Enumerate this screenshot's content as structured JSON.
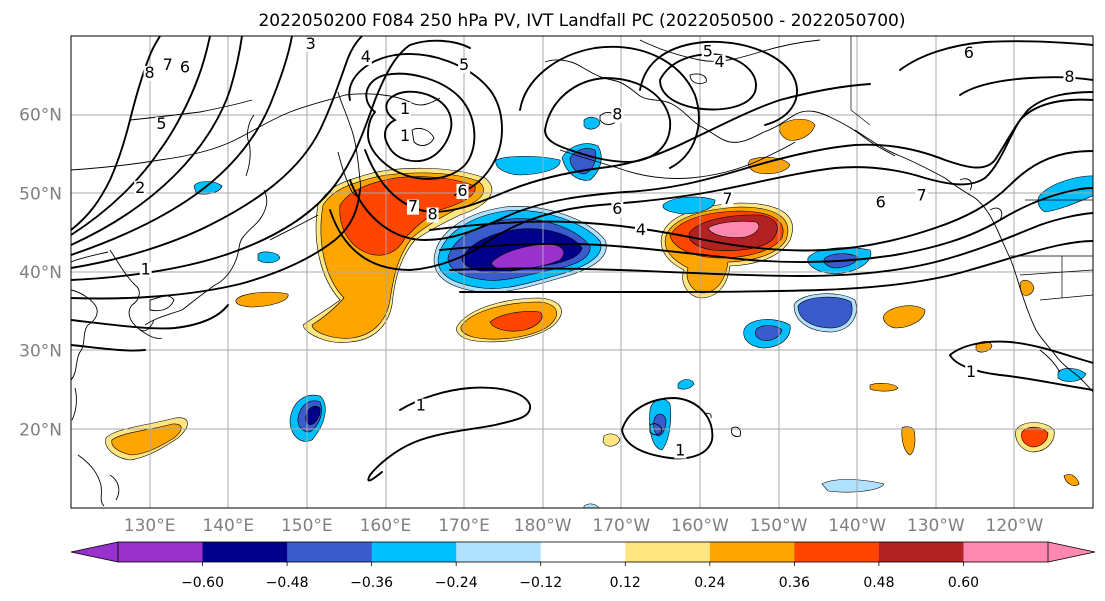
{
  "title": "2022050200 F084 250 hPa PV, IVT Landfall PC (2022050500 - 2022050700)",
  "map": {
    "projection": "PlateCarree",
    "lon_range": [
      120,
      250
    ],
    "lat_range": [
      10,
      70
    ],
    "gridlines": true,
    "lat_ticks": [
      {
        "lat": 60,
        "label": "60°N"
      },
      {
        "lat": 50,
        "label": "50°N"
      },
      {
        "lat": 40,
        "label": "40°N"
      },
      {
        "lat": 30,
        "label": "30°N"
      },
      {
        "lat": 20,
        "label": "20°N"
      }
    ],
    "lon_ticks": [
      {
        "lon": 130,
        "label": "130°E"
      },
      {
        "lon": 140,
        "label": "140°E"
      },
      {
        "lon": 150,
        "label": "150°E"
      },
      {
        "lon": 160,
        "label": "160°E"
      },
      {
        "lon": 170,
        "label": "170°E"
      },
      {
        "lon": 180,
        "label": "180°W"
      },
      {
        "lon": 190,
        "label": "170°W"
      },
      {
        "lon": 200,
        "label": "160°W"
      },
      {
        "lon": 210,
        "label": "150°W"
      },
      {
        "lon": 220,
        "label": "140°W"
      },
      {
        "lon": 230,
        "label": "130°W"
      },
      {
        "lon": 240,
        "label": "120°W"
      }
    ]
  },
  "colorbar": {
    "extend": "both",
    "colors": [
      "#9932cc",
      "#00008b",
      "#3a5bcc",
      "#00bfff",
      "#b0e2ff",
      "#ffffff",
      "#ffe680",
      "#ffa500",
      "#ff4500",
      "#b22222",
      "#ff88b0"
    ],
    "labels": [
      "−0.60",
      "−0.48",
      "−0.36",
      "−0.24",
      "−0.12",
      "0.12",
      "0.24",
      "0.36",
      "0.48",
      "0.60"
    ]
  },
  "pv_contour_labels": [
    {
      "text": "3",
      "lon": 150.5,
      "lat": 68.5
    },
    {
      "text": "4",
      "lon": 157.5,
      "lat": 66.8
    },
    {
      "text": "5",
      "lon": 170,
      "lat": 65.8
    },
    {
      "text": "5",
      "lon": 201,
      "lat": 67.5
    },
    {
      "text": "4",
      "lon": 202.5,
      "lat": 66.2
    },
    {
      "text": "6",
      "lon": 234.2,
      "lat": 67.3
    },
    {
      "text": "8",
      "lon": 247,
      "lat": 64.3
    },
    {
      "text": "8",
      "lon": 130,
      "lat": 64.8
    },
    {
      "text": "7",
      "lon": 132.3,
      "lat": 65.8
    },
    {
      "text": "6",
      "lon": 134.5,
      "lat": 65.5
    },
    {
      "text": "5",
      "lon": 131.5,
      "lat": 58.3
    },
    {
      "text": "2",
      "lon": 128.8,
      "lat": 50.2
    },
    {
      "text": "1",
      "lon": 129.5,
      "lat": 39.8
    },
    {
      "text": "1",
      "lon": 162.5,
      "lat": 60.2
    },
    {
      "text": "1",
      "lon": 162.5,
      "lat": 56.8
    },
    {
      "text": "8",
      "lon": 189.5,
      "lat": 59.5
    },
    {
      "text": "7",
      "lon": 163.5,
      "lat": 47.8
    },
    {
      "text": "6",
      "lon": 169.8,
      "lat": 49.8
    },
    {
      "text": "8",
      "lon": 166,
      "lat": 46.8
    },
    {
      "text": "6",
      "lon": 189.5,
      "lat": 47.5
    },
    {
      "text": "4",
      "lon": 192.5,
      "lat": 44.8
    },
    {
      "text": "7",
      "lon": 203.5,
      "lat": 48.8
    },
    {
      "text": "6",
      "lon": 223,
      "lat": 48.3
    },
    {
      "text": "7",
      "lon": 228.2,
      "lat": 49.2
    },
    {
      "text": "1",
      "lon": 164.5,
      "lat": 22.5
    },
    {
      "text": "1",
      "lon": 197.5,
      "lat": 16.8
    },
    {
      "text": "1",
      "lon": 234.5,
      "lat": 26.8
    }
  ]
}
